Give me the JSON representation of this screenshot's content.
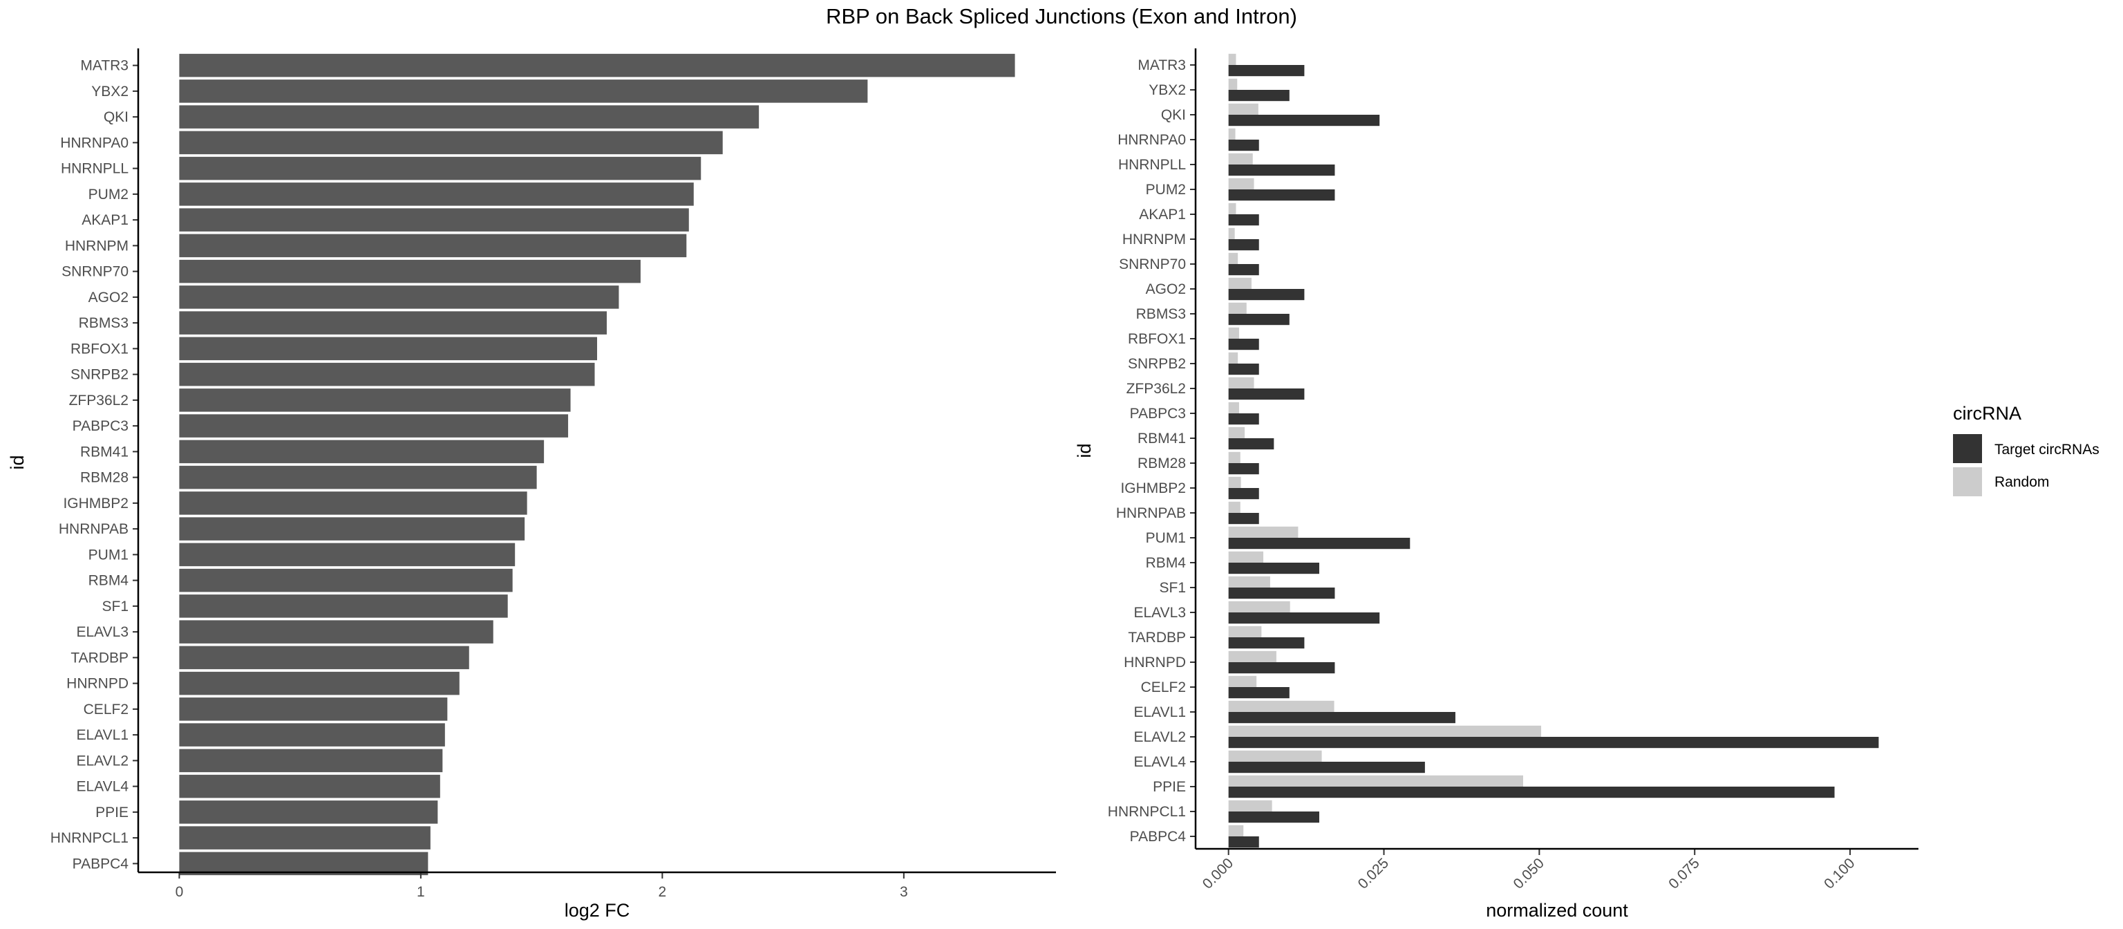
{
  "title": "RBP on Back Spliced Junctions (Exon and Intron)",
  "chart_data": [
    {
      "type": "bar",
      "orientation": "horizontal",
      "xlabel": "log2 FC",
      "ylabel": "id",
      "xlim": [
        -0.17,
        3.63
      ],
      "xticks": [
        "0",
        "1",
        "2",
        "3"
      ],
      "grid": false,
      "bar_color": "#595959",
      "categories": [
        "MATR3",
        "YBX2",
        "QKI",
        "HNRNPA0",
        "HNRNPLL",
        "PUM2",
        "AKAP1",
        "HNRNPM",
        "SNRNP70",
        "AGO2",
        "RBMS3",
        "RBFOX1",
        "SNRPB2",
        "ZFP36L2",
        "PABPC3",
        "RBM41",
        "RBM28",
        "IGHMBP2",
        "HNRNPAB",
        "PUM1",
        "RBM4",
        "SF1",
        "ELAVL3",
        "TARDBP",
        "HNRNPD",
        "CELF2",
        "ELAVL1",
        "ELAVL2",
        "ELAVL4",
        "PPIE",
        "HNRNPCL1",
        "PABPC4"
      ],
      "values": [
        3.46,
        2.85,
        2.4,
        2.25,
        2.16,
        2.13,
        2.11,
        2.1,
        1.91,
        1.82,
        1.77,
        1.73,
        1.72,
        1.62,
        1.61,
        1.51,
        1.48,
        1.44,
        1.43,
        1.39,
        1.38,
        1.36,
        1.3,
        1.2,
        1.16,
        1.11,
        1.1,
        1.09,
        1.08,
        1.07,
        1.04,
        1.03
      ]
    },
    {
      "type": "bar",
      "orientation": "horizontal",
      "xlabel": "normalized count",
      "ylabel": "id",
      "xlim": [
        -0.0053,
        0.111
      ],
      "xticks": [
        "0.000",
        "0.025",
        "0.050",
        "0.075",
        "0.100"
      ],
      "grid": false,
      "legend_title": "circRNA",
      "legend_placement": "right",
      "categories": [
        "MATR3",
        "YBX2",
        "QKI",
        "HNRNPA0",
        "HNRNPLL",
        "PUM2",
        "AKAP1",
        "HNRNPM",
        "SNRNP70",
        "AGO2",
        "RBMS3",
        "RBFOX1",
        "SNRPB2",
        "ZFP36L2",
        "PABPC3",
        "RBM41",
        "RBM28",
        "IGHMBP2",
        "HNRNPAB",
        "PUM1",
        "RBM4",
        "SF1",
        "ELAVL3",
        "TARDBP",
        "HNRNPD",
        "CELF2",
        "ELAVL1",
        "ELAVL2",
        "ELAVL4",
        "PPIE",
        "HNRNPCL1",
        "PABPC4"
      ],
      "series": [
        {
          "name": "Target circRNAs",
          "color": "#333333",
          "values": [
            0.0122,
            0.0098,
            0.0243,
            0.0049,
            0.0171,
            0.0171,
            0.0049,
            0.0049,
            0.0049,
            0.0122,
            0.0098,
            0.0049,
            0.0049,
            0.0122,
            0.0049,
            0.0073,
            0.0049,
            0.0049,
            0.0049,
            0.0292,
            0.0146,
            0.0171,
            0.0243,
            0.0122,
            0.0171,
            0.0098,
            0.0365,
            0.1046,
            0.0316,
            0.0975,
            0.0146,
            0.0049
          ]
        },
        {
          "name": "Random",
          "color": "#cccccc",
          "values": [
            0.0012,
            0.0014,
            0.0048,
            0.0011,
            0.0039,
            0.0041,
            0.0012,
            0.001,
            0.0015,
            0.0037,
            0.0029,
            0.0017,
            0.0015,
            0.0041,
            0.0017,
            0.0026,
            0.0019,
            0.002,
            0.0019,
            0.0112,
            0.0056,
            0.0067,
            0.0099,
            0.0053,
            0.0077,
            0.0045,
            0.017,
            0.0503,
            0.015,
            0.0474,
            0.007,
            0.0024
          ]
        }
      ]
    }
  ]
}
